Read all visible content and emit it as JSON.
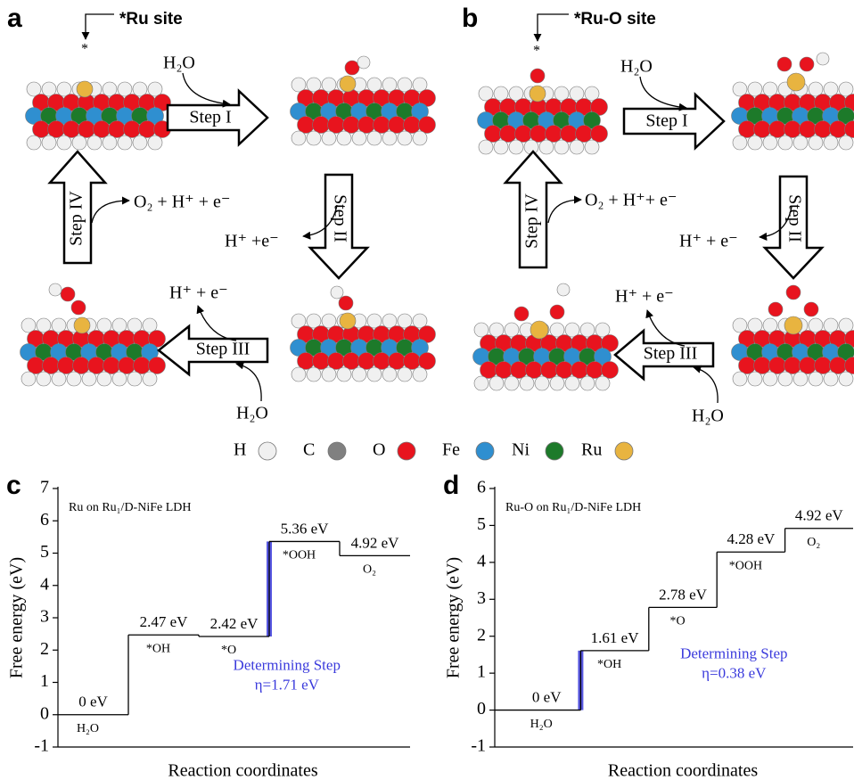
{
  "panels": [
    {
      "letter": "a",
      "site": "*Ru site",
      "marker": "*",
      "steps": [
        "Step I",
        "Step II",
        "Step III",
        "Step IV"
      ],
      "species": [
        "H₂O",
        "O₂ + H⁺ + e⁻",
        "H⁺ +e⁻",
        "H⁺ + e⁻",
        "H₂O"
      ]
    },
    {
      "letter": "b",
      "site": "*Ru-O site",
      "marker": "*",
      "steps": [
        "Step I",
        "Step II",
        "Step III",
        "Step IV"
      ],
      "species": [
        "H₂O",
        "O₂ + H⁺+ e⁻",
        "H⁺ + e⁻",
        "H⁺ + e⁻",
        "H₂O"
      ]
    }
  ],
  "legend": [
    {
      "label": "H",
      "color": "#f0f0f0"
    },
    {
      "label": "C",
      "color": "#808080"
    },
    {
      "label": "O",
      "color": "#e8141e"
    },
    {
      "label": "Fe",
      "color": "#2f8fd0"
    },
    {
      "label": "Ni",
      "color": "#1d7a2a"
    },
    {
      "label": "Ru",
      "color": "#e8b440"
    }
  ],
  "chart_data": [
    {
      "type": "step",
      "panel_label": "c",
      "title": "Ru on Ru₁/D-NiFe LDH",
      "x_label": "Reaction coordinates",
      "y_label": "Free energy (eV)",
      "categories": [
        "H₂O",
        "*OH",
        "*O",
        "*OOH",
        "O₂"
      ],
      "values": [
        0,
        2.47,
        2.42,
        5.36,
        4.92
      ],
      "value_labels": [
        "0 eV",
        "2.47 eV",
        "2.42 eV",
        "5.36 eV",
        "4.92 eV"
      ],
      "ylim": [
        -1,
        7
      ],
      "yticks": [
        -1,
        0,
        1,
        2,
        3,
        4,
        5,
        6,
        7
      ],
      "color": "#000000",
      "highlight_step": 3,
      "highlight_color": "#3a3adc",
      "annotation": [
        "Determining Step",
        "η=1.71 eV"
      ]
    },
    {
      "type": "step",
      "panel_label": "d",
      "title": "Ru-O on Ru₁/D-NiFe LDH",
      "x_label": "Reaction coordinates",
      "y_label": "Free energy (eV)",
      "categories": [
        "H₂O",
        "*OH",
        "*O",
        "*OOH",
        "O₂"
      ],
      "values": [
        0,
        1.61,
        2.78,
        4.28,
        4.92
      ],
      "value_labels": [
        "0 eV",
        "1.61 eV",
        "2.78 eV",
        "4.28 eV",
        "4.92 eV"
      ],
      "ylim": [
        -1,
        6
      ],
      "yticks": [
        -1,
        0,
        1,
        2,
        3,
        4,
        5,
        6
      ],
      "color": "#000000",
      "highlight_step": 1,
      "highlight_color": "#3a3adc",
      "annotation": [
        "Determining Step",
        "η=0.38 eV"
      ]
    }
  ]
}
